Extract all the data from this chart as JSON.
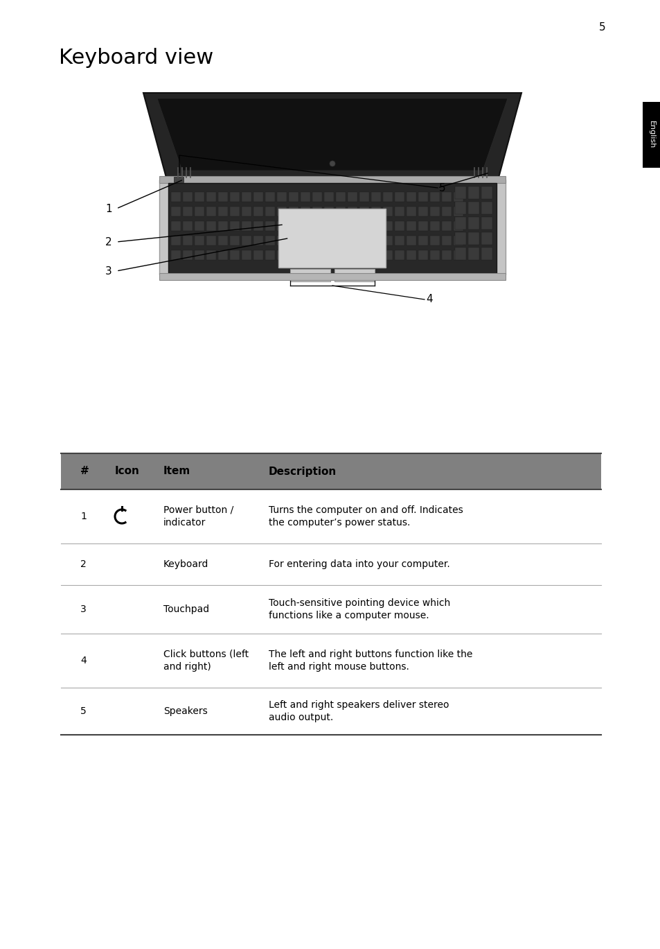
{
  "page_number": "5",
  "title": "Keyboard view",
  "english_tab": "English",
  "header_bg": "#808080",
  "header_cols": [
    "#",
    "Icon",
    "Item",
    "Description"
  ],
  "table_rows": [
    {
      "num": "1",
      "icon": "power",
      "item": "Power button /\nindicator",
      "description": "Turns the computer on and off. Indicates\nthe computer’s power status."
    },
    {
      "num": "2",
      "icon": "",
      "item": "Keyboard",
      "description": "For entering data into your computer."
    },
    {
      "num": "3",
      "icon": "",
      "item": "Touchpad",
      "description": "Touch-sensitive pointing device which\nfunctions like a computer mouse."
    },
    {
      "num": "4",
      "icon": "",
      "item": "Click buttons (left\nand right)",
      "description": "The left and right buttons function like the\nleft and right mouse buttons."
    },
    {
      "num": "5",
      "icon": "",
      "item": "Speakers",
      "description": "Left and right speakers deliver stereo\naudio output."
    }
  ],
  "font_size_title": 22,
  "font_size_header": 11,
  "font_size_body": 10,
  "font_size_page": 11
}
